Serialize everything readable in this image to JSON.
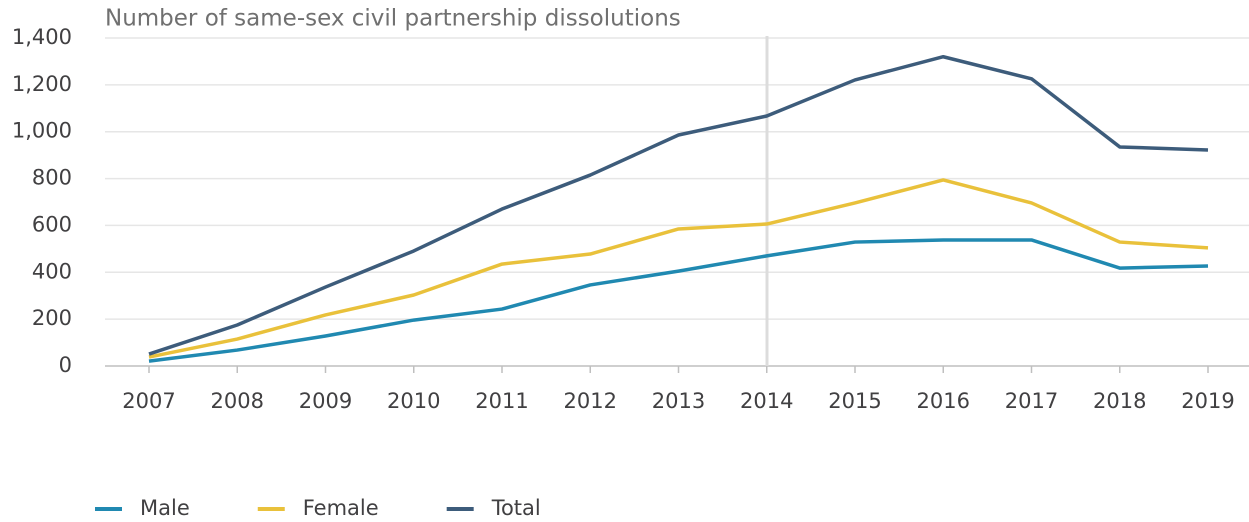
{
  "chart_data": {
    "type": "line",
    "title": "Number of same-sex civil partnership dissolutions",
    "categories": [
      "2007",
      "2008",
      "2009",
      "2010",
      "2011",
      "2012",
      "2013",
      "2014",
      "2015",
      "2016",
      "2017",
      "2018",
      "2019"
    ],
    "series": [
      {
        "name": "Male",
        "color": "#2089b1",
        "values": [
          21,
          68,
          128,
          196,
          243,
          346,
          405,
          470,
          529,
          538,
          538,
          418,
          427
        ]
      },
      {
        "name": "Female",
        "color": "#e9c13b",
        "values": [
          38,
          115,
          218,
          303,
          435,
          478,
          585,
          606,
          696,
          794,
          696,
          529,
          504
        ]
      },
      {
        "name": "Total",
        "color": "#3d5c7b",
        "values": [
          51,
          175,
          337,
          491,
          670,
          815,
          986,
          1067,
          1221,
          1320,
          1226,
          935,
          922
        ]
      }
    ],
    "ylim": [
      0,
      1400
    ],
    "yticks": [
      0,
      200,
      400,
      600,
      800,
      {
        "value": 1000,
        "label": "1,000"
      },
      {
        "value": 1200,
        "label": "1,200"
      },
      {
        "value": 1400,
        "label": "1,400"
      }
    ],
    "grid": true
  }
}
